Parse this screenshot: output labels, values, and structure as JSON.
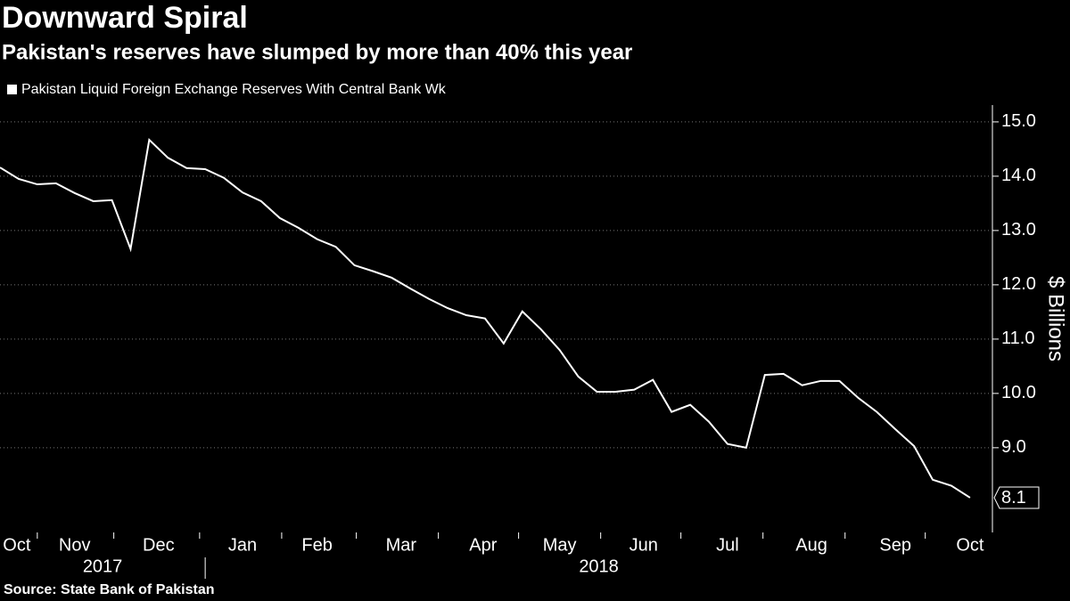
{
  "chart_data": {
    "type": "line",
    "title": "Downward Spiral",
    "subtitle": "Pakistan's reserves have slumped by more than 40% this year",
    "y_axis_label": "$ Billions",
    "source": "Source: State Bank of Pakistan",
    "series": [
      {
        "name": "Pakistan Liquid Foreign Exchange Reserves With Central Bank Wk",
        "color": "#ffffff",
        "values": [
          14.16,
          13.95,
          13.85,
          13.87,
          13.69,
          13.54,
          13.56,
          12.66,
          14.67,
          14.34,
          14.15,
          14.13,
          13.97,
          13.7,
          13.54,
          13.23,
          13.05,
          12.84,
          12.7,
          12.36,
          12.25,
          12.13,
          11.93,
          11.74,
          11.57,
          11.44,
          11.38,
          10.92,
          11.51,
          11.18,
          10.8,
          10.31,
          10.03,
          10.03,
          10.07,
          10.25,
          9.66,
          9.79,
          9.48,
          9.07,
          9.0,
          10.34,
          10.36,
          10.15,
          10.23,
          10.23,
          9.92,
          9.66,
          9.34,
          9.03,
          8.41,
          8.3,
          8.08
        ],
        "value_labels": [
          null,
          null,
          null,
          null,
          null,
          null,
          null,
          null,
          null,
          null,
          null,
          null,
          null,
          null,
          null,
          null,
          null,
          null,
          null,
          null,
          null,
          null,
          null,
          null,
          null,
          null,
          null,
          null,
          null,
          null,
          null,
          null,
          null,
          null,
          null,
          null,
          null,
          null,
          null,
          null,
          null,
          null,
          null,
          null,
          null,
          null,
          null,
          null,
          null,
          null,
          null,
          null,
          "8.1"
        ]
      }
    ],
    "xlim": [
      0,
      53.2
    ],
    "xticks": [
      2,
      6.1,
      10.7,
      15.1,
      19.1,
      23.5,
      27.8,
      32.2,
      36.5,
      40.9,
      45.3,
      49.6
    ],
    "month_labels": [
      {
        "value": 0.9,
        "label": "Oct"
      },
      {
        "value": 4.0,
        "label": "Nov"
      },
      {
        "value": 8.5,
        "label": "Dec"
      },
      {
        "value": 13.0,
        "label": "Jan"
      },
      {
        "value": 17.0,
        "label": "Feb"
      },
      {
        "value": 21.5,
        "label": "Mar"
      },
      {
        "value": 25.9,
        "label": "Apr"
      },
      {
        "value": 30.0,
        "label": "May"
      },
      {
        "value": 34.5,
        "label": "Jun"
      },
      {
        "value": 39.0,
        "label": "Jul"
      },
      {
        "value": 43.5,
        "label": "Aug"
      },
      {
        "value": 48.0,
        "label": "Sep"
      },
      {
        "value": 52.0,
        "label": "Oct"
      }
    ],
    "year_labels": [
      {
        "value": 5.5,
        "label": "2017"
      },
      {
        "value": 32.1,
        "label": "2018"
      }
    ],
    "year_separator": 11,
    "ylim": [
      7.44,
      15.31
    ],
    "yticks": [
      {
        "value": 9,
        "label": "9.0"
      },
      {
        "value": 10,
        "label": "10.0"
      },
      {
        "value": 11,
        "label": "11.0"
      },
      {
        "value": 12,
        "label": "12.0"
      },
      {
        "value": 13,
        "label": "13.0"
      },
      {
        "value": 14,
        "label": "14.0"
      },
      {
        "value": 15,
        "label": "15.0"
      }
    ],
    "grid": true
  }
}
